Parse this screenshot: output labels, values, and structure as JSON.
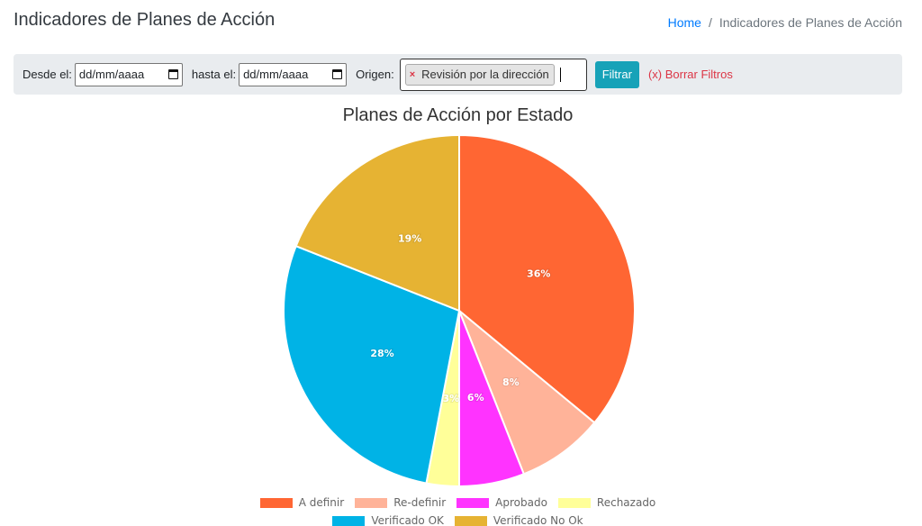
{
  "header": {
    "title": "Indicadores de Planes de Acción",
    "breadcrumb": {
      "home": "Home",
      "separator": "/",
      "current": "Indicadores de Planes de Acción"
    }
  },
  "filters": {
    "desde_label": "Desde el:",
    "desde_value": "dd/mm/aaaa",
    "hasta_label": "hasta el:",
    "hasta_value": "dd/mm/aaaa",
    "origen_label": "Origen:",
    "origen_selected": "Revisión por la dirección",
    "origen_remove": "×",
    "filter_button": "Filtrar",
    "clear_filters": "(x) Borrar Filtros"
  },
  "chart_data": {
    "type": "pie",
    "title": "Planes de Acción por Estado",
    "slices": [
      {
        "label": "A definir",
        "value": 36,
        "display": "36%",
        "color": "#ff6633"
      },
      {
        "label": "Re-definir",
        "value": 8,
        "display": "8%",
        "color": "#ffb399"
      },
      {
        "label": "Aprobado",
        "value": 6,
        "display": "6%",
        "color": "#ff33ff"
      },
      {
        "label": "Rechazado",
        "value": 3,
        "display": "3%",
        "color": "#ffff99"
      },
      {
        "label": "Verificado OK",
        "value": 28,
        "display": "28%",
        "color": "#00b3e6"
      },
      {
        "label": "Verificado No Ok",
        "value": 19,
        "display": "19%",
        "color": "#e6b333"
      }
    ],
    "legend_position": "bottom"
  }
}
